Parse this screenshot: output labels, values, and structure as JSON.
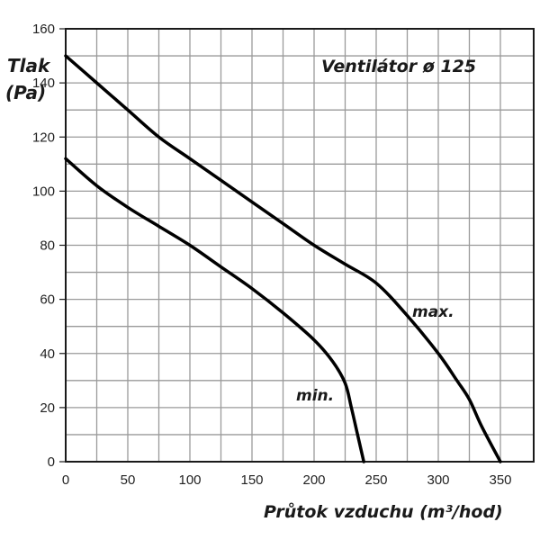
{
  "chart_data": {
    "type": "line",
    "title": "Ventilátor ø 125",
    "xlabel": "Průtok vzduchu (m³/hod)",
    "ylabel_line1": "Tlak",
    "ylabel_line2": "(Pa)",
    "xlim": [
      0,
      375
    ],
    "ylim": [
      0,
      160
    ],
    "x_ticks": [
      0,
      50,
      100,
      150,
      200,
      250,
      300,
      350
    ],
    "y_ticks": [
      0,
      20,
      40,
      60,
      80,
      100,
      120,
      140,
      160
    ],
    "grid": true,
    "grid_x_step": 25,
    "grid_y_step": 10,
    "series": [
      {
        "name": "max.",
        "x": [
          0,
          25,
          50,
          75,
          100,
          125,
          150,
          175,
          200,
          225,
          250,
          275,
          300,
          315,
          325,
          335,
          350
        ],
        "values": [
          150,
          140,
          130,
          120,
          112,
          104,
          96,
          88,
          80,
          73,
          66,
          54,
          40,
          30,
          23,
          13,
          0
        ]
      },
      {
        "name": "min.",
        "x": [
          0,
          25,
          50,
          75,
          100,
          125,
          150,
          175,
          200,
          215,
          225,
          230,
          235,
          240
        ],
        "values": [
          112,
          102,
          94,
          87,
          80,
          72,
          64,
          55,
          45,
          37,
          29,
          20,
          10,
          0
        ]
      }
    ]
  },
  "labels": {
    "title": "Ventilátor ø 125",
    "ylabel_line1": "Tlak",
    "ylabel_line2": "(Pa)",
    "xlabel": "Průtok vzduchu (m³/hod)",
    "max_label": "max.",
    "min_label": "min."
  },
  "style": {
    "line_color": "#000000",
    "grid_color": "#9a9a9a",
    "axis_color": "#1a1a1a"
  }
}
